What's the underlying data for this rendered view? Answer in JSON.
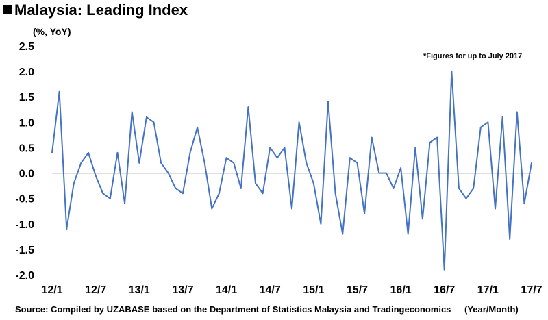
{
  "header": {
    "title": "Malaysia: Leading Index",
    "unit": "(%, YoY)"
  },
  "note": "*Figures for up to July 2017",
  "footer": {
    "source": "Source: Compiled by UZABASE based on the Department of Statistics Malaysia and Tradingeconomics",
    "x_unit": "(Year/Month)"
  },
  "chart_data": {
    "type": "line",
    "title": "Malaysia: Leading Index",
    "ylabel": "(%, YoY)",
    "xlabel": "(Year/Month)",
    "ylim": [
      -2.0,
      2.5
    ],
    "yticks": [
      "2.5",
      "2.0",
      "1.5",
      "1.0",
      "0.5",
      "0.0",
      "-0.5",
      "-1.0",
      "-1.5",
      "-2.0"
    ],
    "x_tick_labels": [
      "12/1",
      "12/7",
      "13/1",
      "13/7",
      "14/1",
      "14/7",
      "15/1",
      "15/7",
      "16/1",
      "16/7",
      "17/1",
      "17/7"
    ],
    "x_start": "2012/1",
    "x_end": "2017/7",
    "grid": false,
    "zero_line": true,
    "line_color": "#4472C4",
    "series": [
      {
        "values": [
          0.4,
          1.6,
          -1.1,
          -0.2,
          0.2,
          0.4,
          -0.05,
          -0.4,
          -0.5,
          0.4,
          -0.6,
          1.2,
          0.2,
          1.1,
          1.0,
          0.2,
          0.0,
          -0.3,
          -0.4,
          0.4,
          0.9,
          0.2,
          -0.7,
          -0.4,
          0.3,
          0.2,
          -0.3,
          1.3,
          -0.2,
          -0.4,
          0.5,
          0.3,
          0.5,
          -0.7,
          1.0,
          0.2,
          -0.2,
          -1.0,
          1.4,
          -0.4,
          -1.2,
          0.3,
          0.2,
          -0.8,
          0.7,
          0.0,
          0.0,
          -0.3,
          0.1,
          -1.2,
          0.5,
          -0.9,
          0.6,
          0.7,
          -1.9,
          2.0,
          -0.3,
          -0.5,
          -0.3,
          0.9,
          1.0,
          -0.7,
          1.1,
          -1.3,
          1.2,
          -0.6,
          0.2
        ]
      }
    ]
  }
}
